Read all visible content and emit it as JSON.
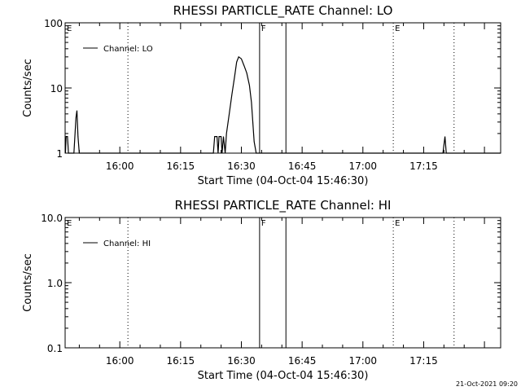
{
  "colors": {
    "background": "#ffffff",
    "ink": "#000000"
  },
  "timestamp": "21-Oct-2021 09:20",
  "chart_data": [
    {
      "type": "line",
      "title": "RHESSI PARTICLE_RATE Channel: LO",
      "xlabel": "Start Time (04-Oct-04 15:46:30)",
      "ylabel": "Counts/sec",
      "yscale": "log",
      "xlim": [
        "15:46:30",
        "17:34:00"
      ],
      "ylim": [
        1,
        100
      ],
      "xticks": [
        "16:00",
        "16:15",
        "16:30",
        "16:45",
        "17:00",
        "17:15"
      ],
      "yticks": [
        "1",
        "10",
        "100"
      ],
      "legend": {
        "position": "top-left",
        "entries": [
          "Channel: LO"
        ]
      },
      "markers": [
        {
          "label": "E",
          "time": "15:46:30",
          "style": "none"
        },
        {
          "label": "",
          "time": "16:02:00",
          "style": "dotted"
        },
        {
          "label": "F",
          "time": "16:34:30",
          "style": "solid"
        },
        {
          "label": "",
          "time": "16:41:00",
          "style": "solid"
        },
        {
          "label": "E",
          "time": "17:07:30",
          "style": "dotted"
        },
        {
          "label": "",
          "time": "17:22:30",
          "style": "dotted"
        }
      ],
      "series": [
        {
          "name": "Channel: LO",
          "points": [
            [
              "15:46:35",
              1
            ],
            [
              "15:46:45",
              1.8
            ],
            [
              "15:47:05",
              1.8
            ],
            [
              "15:47:20",
              1
            ],
            [
              "15:48:40",
              1
            ],
            [
              "15:49:10",
              3.5
            ],
            [
              "15:49:25",
              4.5
            ],
            [
              "15:49:40",
              1.8
            ],
            [
              "15:50:00",
              1
            ],
            [
              "15:50:30",
              1
            ],
            [
              "16:23:05",
              1
            ],
            [
              "16:23:25",
              1.8
            ],
            [
              "16:24:00",
              1.8
            ],
            [
              "16:24:15",
              1
            ],
            [
              "16:24:30",
              1.8
            ],
            [
              "16:25:00",
              1.8
            ],
            [
              "16:25:15",
              1
            ],
            [
              "16:25:35",
              1.8
            ],
            [
              "16:26:00",
              1
            ],
            [
              "16:26:20",
              2
            ],
            [
              "16:27:00",
              4
            ],
            [
              "16:27:40",
              8
            ],
            [
              "16:28:20",
              15
            ],
            [
              "16:28:50",
              25
            ],
            [
              "16:29:20",
              30
            ],
            [
              "16:30:00",
              28
            ],
            [
              "16:30:40",
              22
            ],
            [
              "16:31:20",
              17
            ],
            [
              "16:32:00",
              11
            ],
            [
              "16:32:30",
              6
            ],
            [
              "16:33:10",
              1.5
            ],
            [
              "16:33:40",
              1
            ],
            [
              "17:19:45",
              1
            ],
            [
              "17:20:15",
              1.8
            ],
            [
              "17:20:35",
              1
            ],
            [
              "17:34:00",
              1
            ]
          ]
        }
      ]
    },
    {
      "type": "line",
      "title": "RHESSI PARTICLE_RATE Channel: HI",
      "xlabel": "Start Time (04-Oct-04 15:46:30)",
      "ylabel": "Counts/sec",
      "yscale": "log",
      "xlim": [
        "15:46:30",
        "17:34:00"
      ],
      "ylim": [
        0.1,
        10
      ],
      "xticks": [
        "16:00",
        "16:15",
        "16:30",
        "16:45",
        "17:00",
        "17:15"
      ],
      "yticks": [
        "0.1",
        "1.0",
        "10.0"
      ],
      "legend": {
        "position": "top-left",
        "entries": [
          "Channel: HI"
        ]
      },
      "markers": [
        {
          "label": "E",
          "time": "15:46:30",
          "style": "none"
        },
        {
          "label": "",
          "time": "16:02:00",
          "style": "dotted"
        },
        {
          "label": "F",
          "time": "16:34:30",
          "style": "solid"
        },
        {
          "label": "",
          "time": "16:41:00",
          "style": "solid"
        },
        {
          "label": "E",
          "time": "17:07:30",
          "style": "dotted"
        },
        {
          "label": "",
          "time": "17:22:30",
          "style": "dotted"
        }
      ],
      "series": [
        {
          "name": "Channel: HI",
          "points": []
        }
      ]
    }
  ]
}
